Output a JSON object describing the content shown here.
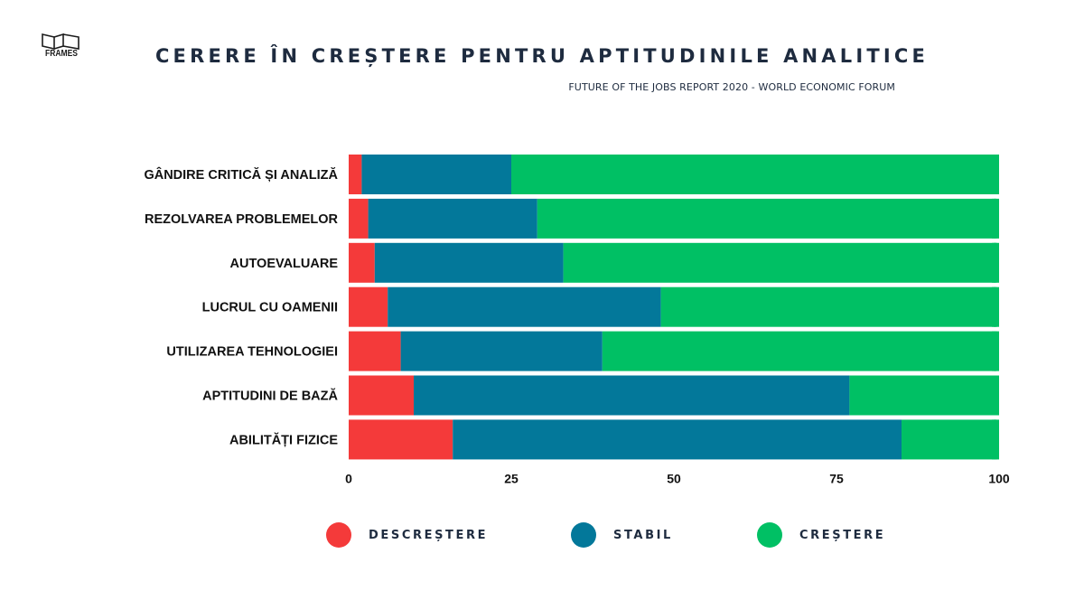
{
  "logo": {
    "text": "FRAMES"
  },
  "chart_data": {
    "type": "bar",
    "orientation": "horizontal",
    "stacked": true,
    "title": "CERERE ÎN CREȘTERE PENTRU APTITUDINILE ANALITICE",
    "subtitle": "FUTURE OF THE JOBS REPORT 2020 - WORLD ECONOMIC FORUM",
    "categories": [
      "GÂNDIRE CRITICĂ ȘI ANALIZĂ",
      "REZOLVAREA PROBLEMELOR",
      "AUTOEVALUARE",
      "LUCRUL CU OAMENII",
      "UTILIZAREA TEHNOLOGIEI",
      "APTITUDINI DE BAZĂ",
      "ABILITĂȚI FIZICE"
    ],
    "series": [
      {
        "name": "DESCREȘTERE",
        "color": "#f43a3a",
        "values": [
          2,
          3,
          4,
          6,
          8,
          10,
          16
        ]
      },
      {
        "name": "STABIL",
        "color": "#03789a",
        "values": [
          23,
          26,
          29,
          42,
          31,
          67,
          69
        ]
      },
      {
        "name": "CREȘTERE",
        "color": "#00c064",
        "values": [
          75,
          71,
          67,
          52,
          61,
          23,
          15
        ]
      }
    ],
    "xlim": [
      0,
      100
    ],
    "xticks": [
      "0",
      "25",
      "50",
      "75",
      "100"
    ],
    "grid": false,
    "legend": "bottom"
  }
}
